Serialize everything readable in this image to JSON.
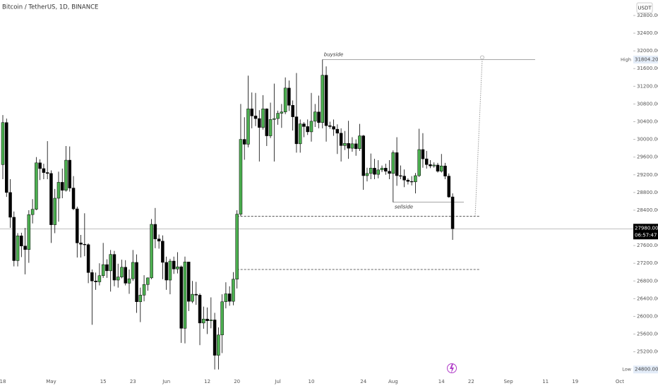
{
  "chart_data": {
    "type": "candlestick",
    "title": "Bitcoin / TetherUS, 1D, BINANCE",
    "currency": "USDT",
    "up_color": "#4caf50",
    "down_color": "#000000",
    "categories": [
      "18",
      null,
      null,
      null,
      null,
      null,
      null,
      null,
      null,
      null,
      null,
      null,
      null,
      "May",
      null,
      null,
      null,
      null,
      null,
      null,
      null,
      null,
      null,
      null,
      null,
      null,
      null,
      "15",
      null,
      null,
      null,
      null,
      null,
      null,
      null,
      "23",
      null,
      null,
      null,
      null,
      null,
      null,
      null,
      null,
      "Jun",
      null,
      null,
      null,
      null,
      null,
      null,
      null,
      null,
      null,
      null,
      "12",
      null,
      null,
      null,
      null,
      null,
      null,
      null,
      "20",
      null,
      null,
      null,
      null,
      null,
      null,
      null,
      null,
      null,
      null,
      "Jul",
      null,
      null,
      null,
      null,
      null,
      null,
      null,
      null,
      "10",
      null,
      null,
      null,
      null,
      null,
      null,
      null,
      null,
      null,
      null,
      null,
      null,
      null,
      "24",
      null,
      null,
      null,
      null,
      null,
      null,
      null,
      "Aug",
      null,
      null,
      null,
      null,
      null,
      null,
      null,
      null,
      null,
      null,
      null,
      null,
      "14",
      null,
      null,
      null
    ],
    "future_categories": [
      null,
      null,
      null,
      null,
      "22",
      null,
      null,
      null,
      null,
      null,
      null,
      null,
      null,
      null,
      "Sep",
      null,
      null,
      null,
      null,
      null,
      null,
      null,
      null,
      null,
      "11",
      null,
      null,
      null,
      null,
      null,
      null,
      null,
      "19",
      null,
      null,
      null,
      null,
      null,
      null,
      null,
      null,
      null,
      null,
      null,
      "Oct"
    ],
    "open": [
      29430,
      30380,
      28800,
      28240,
      27260,
      27820,
      27590,
      27510,
      28300,
      28420,
      29470,
      29340,
      29250,
      29230,
      28070,
      28670,
      29030,
      28850,
      29530,
      28900,
      28430,
      27660,
      27630,
      27620,
      26990,
      26800,
      26780,
      26920,
      27170,
      27030,
      27400,
      26820,
      26890,
      27110,
      26750,
      26850,
      27220,
      26330,
      26480,
      26720,
      26870,
      28080,
      27750,
      27700,
      27220,
      26820,
      27250,
      27070,
      27120,
      25730,
      27230,
      26340,
      26500,
      26480,
      25850,
      25940,
      25900,
      25920,
      25120,
      25580,
      26330,
      26510,
      26340,
      26840,
      28310,
      30000,
      29890,
      30690,
      30530,
      30470,
      30270,
      30690,
      30080,
      30450,
      30470,
      30590,
      30620,
      31160,
      30770,
      30510,
      29900,
      30350,
      30290,
      30170,
      30410,
      30620,
      30380,
      31450,
      30310,
      30290,
      30230,
      30140,
      29860,
      29910,
      29800,
      29900,
      29790,
      30080,
      29180,
      29230,
      29350,
      29210,
      29310,
      29350,
      29280,
      29230,
      29700,
      29180,
      29170,
      29080,
      29050,
      29040,
      29180,
      29770,
      29560,
      29430,
      29400,
      29420,
      29280,
      29400,
      29170,
      28700
    ],
    "high": [
      30550,
      30470,
      29100,
      28370,
      27880,
      27890,
      28000,
      28400,
      28650,
      29600,
      29550,
      29450,
      29960,
      29300,
      28880,
      29270,
      29340,
      29850,
      29840,
      29170,
      28480,
      27840,
      28330,
      27650,
      27060,
      26990,
      27200,
      27660,
      27290,
      27500,
      27480,
      27190,
      27280,
      27270,
      27060,
      27500,
      27400,
      26650,
      26930,
      26880,
      28200,
      28450,
      27850,
      27830,
      27350,
      27300,
      27350,
      27450,
      27150,
      27350,
      27230,
      26800,
      26780,
      26520,
      26220,
      26200,
      26430,
      26080,
      25750,
      26500,
      26770,
      26680,
      27000,
      28400,
      30800,
      30500,
      31440,
      31060,
      31050,
      30660,
      31000,
      30700,
      30830,
      31260,
      30650,
      30800,
      31400,
      31330,
      30880,
      31500,
      30450,
      30390,
      30450,
      31050,
      30800,
      30990,
      31804.2,
      31650,
      30400,
      30450,
      30340,
      30250,
      30190,
      30420,
      30050,
      30000,
      30350,
      30100,
      29360,
      29680,
      29560,
      29530,
      29410,
      29450,
      29530,
      29750,
      30050,
      29410,
      29320,
      29120,
      29170,
      29240,
      30240,
      30140,
      29740,
      29530,
      29480,
      29470,
      29670,
      29470,
      29230,
      28780
    ],
    "low": [
      29100,
      28700,
      28000,
      27130,
      27130,
      27340,
      26950,
      27210,
      28100,
      28400,
      29080,
      29100,
      29100,
      27660,
      27880,
      28140,
      28670,
      28820,
      28820,
      28400,
      27330,
      27330,
      27360,
      26750,
      25810,
      26600,
      26700,
      26870,
      26870,
      26560,
      26680,
      26650,
      26860,
      26700,
      26510,
      26800,
      26080,
      25870,
      26340,
      26580,
      26840,
      27540,
      27530,
      26840,
      26600,
      26500,
      26960,
      26970,
      25400,
      25390,
      26120,
      26300,
      26260,
      25350,
      25720,
      25600,
      25730,
      24800,
      24800,
      25170,
      26180,
      26240,
      26250,
      26630,
      28270,
      29540,
      29820,
      30250,
      30300,
      29500,
      30220,
      29850,
      30030,
      29500,
      30330,
      30260,
      30570,
      30640,
      30200,
      29700,
      29700,
      30050,
      30100,
      29950,
      30280,
      30250,
      30250,
      29950,
      30240,
      30080,
      29670,
      29500,
      29760,
      29560,
      29720,
      29630,
      29740,
      28860,
      29050,
      29100,
      29100,
      29120,
      29260,
      29200,
      29100,
      28580,
      28950,
      29100,
      28920,
      28980,
      28960,
      28780,
      29150,
      29360,
      29340,
      29350,
      29360,
      29250,
      29250,
      29100,
      28680,
      27730
    ],
    "close": [
      30380,
      28800,
      28240,
      27260,
      27820,
      27590,
      27510,
      28300,
      28420,
      29470,
      29340,
      29250,
      29230,
      28070,
      28670,
      29030,
      28850,
      29530,
      28900,
      28430,
      27660,
      27630,
      27620,
      26990,
      26800,
      26780,
      26920,
      27170,
      27030,
      27400,
      26820,
      26890,
      27110,
      26750,
      26850,
      27220,
      26330,
      26480,
      26720,
      26870,
      28080,
      27750,
      27700,
      27220,
      26820,
      27250,
      27070,
      27120,
      25730,
      27230,
      26340,
      26500,
      26480,
      25850,
      25940,
      25900,
      25920,
      25120,
      25580,
      26330,
      26510,
      26340,
      26840,
      28310,
      30000,
      29890,
      30690,
      30530,
      30470,
      30270,
      30690,
      30080,
      30450,
      30470,
      30590,
      30620,
      31160,
      30770,
      30510,
      29900,
      30350,
      30290,
      30170,
      30410,
      30620,
      30380,
      31450,
      30310,
      30290,
      30230,
      30140,
      29860,
      29910,
      29800,
      29900,
      29790,
      30080,
      29180,
      29230,
      29350,
      29210,
      29310,
      29350,
      29280,
      29230,
      29700,
      29180,
      29170,
      29080,
      29050,
      29040,
      29180,
      29770,
      29560,
      29430,
      29400,
      29420,
      29280,
      29400,
      29170,
      28700,
      27980
    ],
    "ylim": [
      24700,
      33150
    ],
    "yticks": [
      {
        "value": 32800,
        "label": "32800.00"
      },
      {
        "value": 32400,
        "label": "32400.00"
      },
      {
        "value": 32000,
        "label": "32000.00"
      },
      {
        "value": 31600,
        "label": "31600.00"
      },
      {
        "value": 31200,
        "label": "31200.00"
      },
      {
        "value": 30800,
        "label": "30800.00"
      },
      {
        "value": 30400,
        "label": "30400.00"
      },
      {
        "value": 30000,
        "label": "30000.00"
      },
      {
        "value": 29600,
        "label": "29600.00"
      },
      {
        "value": 29200,
        "label": "29200.00"
      },
      {
        "value": 28800,
        "label": "28800.00"
      },
      {
        "value": 28400,
        "label": "28400.00"
      },
      {
        "value": 27600,
        "label": "27600.00"
      },
      {
        "value": 27200,
        "label": "27200.00"
      },
      {
        "value": 26800,
        "label": "26800.00"
      },
      {
        "value": 26400,
        "label": "26400.00"
      },
      {
        "value": 26000,
        "label": "26000.00"
      },
      {
        "value": 25600,
        "label": "25600.00"
      },
      {
        "value": 25200,
        "label": "25200.00"
      }
    ],
    "high_marker": {
      "label": "High",
      "value": 31804.2,
      "text": "31804.20"
    },
    "low_marker": {
      "label": "Low",
      "value": 24800,
      "text": "24800.00"
    },
    "last_price": {
      "value": 27980,
      "text": "27980.00",
      "countdown": "06:57:47"
    },
    "levels": [
      {
        "name": "buyside",
        "value": 31804.2,
        "style": "solid"
      },
      {
        "name": "sellside",
        "value": 28580,
        "style": "solid"
      },
      {
        "value": 28260,
        "style": "dashed"
      },
      {
        "value": 27060,
        "style": "dashed"
      }
    ]
  }
}
